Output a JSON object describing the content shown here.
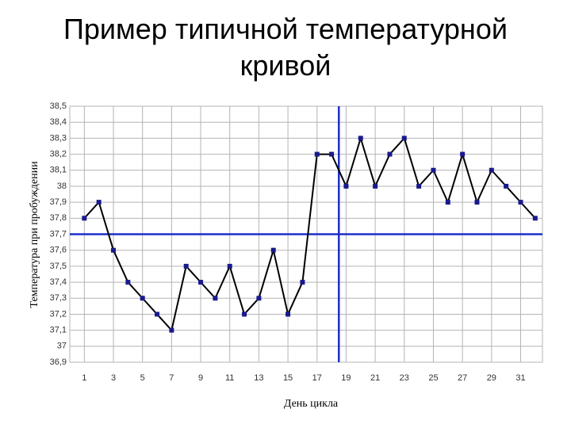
{
  "chart_data": {
    "type": "line",
    "title": "Пример типичной температурной кривой",
    "xlabel": "День цикла",
    "ylabel": "Температура при пробуждении",
    "x": [
      1,
      2,
      3,
      4,
      5,
      6,
      7,
      8,
      9,
      10,
      11,
      12,
      13,
      14,
      15,
      16,
      17,
      18,
      19,
      20,
      21,
      22,
      23,
      24,
      25,
      26,
      27,
      28,
      29,
      30,
      31,
      32
    ],
    "series": [
      {
        "color": "#000000",
        "marker_color": "#1a1a8c",
        "values": [
          37.8,
          37.9,
          37.6,
          37.4,
          37.3,
          37.2,
          37.1,
          37.5,
          37.4,
          37.3,
          37.5,
          37.2,
          37.3,
          37.6,
          37.2,
          37.4,
          38.2,
          38.2,
          38.0,
          38.3,
          38.0,
          38.2,
          38.3,
          38.0,
          38.1,
          37.9,
          38.2,
          37.9,
          38.1,
          38.0,
          37.9,
          37.8
        ]
      }
    ],
    "xlim": [
      0,
      32.5
    ],
    "xticks": [
      1,
      3,
      5,
      7,
      9,
      11,
      13,
      15,
      17,
      19,
      21,
      23,
      25,
      27,
      29,
      31
    ],
    "ylim": [
      36.9,
      38.5
    ],
    "yticks": [
      {
        "value": 36.9,
        "label": "36,9"
      },
      37,
      {
        "value": 37.1,
        "label": "37,1"
      },
      {
        "value": 37.2,
        "label": "37,2"
      },
      {
        "value": 37.3,
        "label": "37,3"
      },
      {
        "value": 37.4,
        "label": "37,4"
      },
      {
        "value": 37.5,
        "label": "37,5"
      },
      {
        "value": 37.6,
        "label": "37,6"
      },
      {
        "value": 37.7,
        "label": "37,7"
      },
      {
        "value": 37.8,
        "label": "37,8"
      },
      {
        "value": 37.9,
        "label": "37,9"
      },
      38,
      {
        "value": 38.1,
        "label": "38,1"
      },
      {
        "value": 38.2,
        "label": "38,2"
      },
      {
        "value": 38.3,
        "label": "38,3"
      },
      {
        "value": 38.4,
        "label": "38,4"
      },
      {
        "value": 38.5,
        "label": "38,5"
      }
    ],
    "grid": true,
    "grid_color": "#b4b4b4",
    "reference_lines": {
      "y": 37.7,
      "x": 18.5,
      "color": "#1f2fc8"
    }
  }
}
